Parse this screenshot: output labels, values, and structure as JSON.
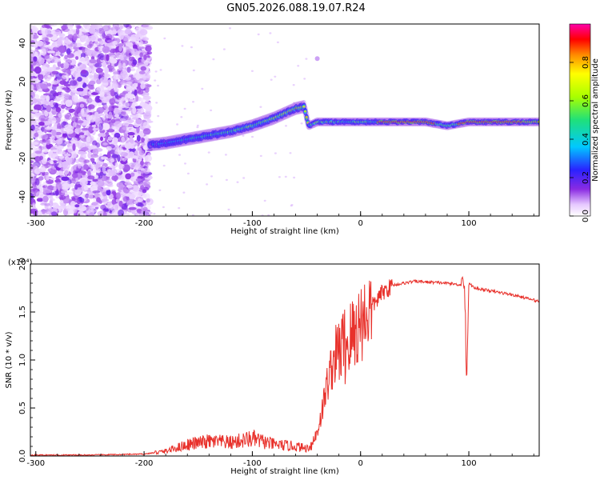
{
  "title": "GN05.2026.088.19.07.R24",
  "chart_data": [
    {
      "type": "heatmap",
      "panel": "top",
      "xlabel": "Height of straight line (km)",
      "ylabel": "Frequency (Hz)",
      "xlim": [
        -305,
        165
      ],
      "ylim": [
        -50,
        50
      ],
      "xticks": [
        -300,
        -200,
        -100,
        0,
        100
      ],
      "yticks": [
        -40,
        -20,
        0,
        20,
        40
      ],
      "colorbar": {
        "label": "Normalized spectral amplitude",
        "range": [
          0,
          1
        ],
        "ticks": [
          0.0,
          0.2,
          0.4,
          0.6,
          0.8
        ],
        "colormap": "rainbow (white → violet → blue → cyan → green → yellow → red → magenta)"
      },
      "noise_region_x": [
        -305,
        -195
      ],
      "ridge": {
        "x": [
          -195,
          -180,
          -150,
          -120,
          -100,
          -80,
          -60,
          -52,
          -48,
          -40,
          -20,
          0,
          20,
          60,
          80,
          100,
          120,
          165
        ],
        "y": [
          -13,
          -12,
          -9,
          -6,
          -3,
          1,
          6,
          7,
          -3,
          -1,
          -1,
          -1,
          -1,
          -1,
          -3,
          -1,
          -1,
          -1
        ],
        "peak_amplitude_x_range": [
          15,
          165
        ]
      }
    },
    {
      "type": "line",
      "panel": "bottom",
      "xlabel": "Height of straight line (km)",
      "ylabel": "SNR (10 * v/v)",
      "y_multiplier": "(x10⁴)",
      "xlim": [
        -305,
        165
      ],
      "ylim": [
        0,
        2.0
      ],
      "xticks": [
        -300,
        -200,
        -100,
        0,
        100
      ],
      "yticks": [
        0.0,
        0.5,
        1.0,
        1.5,
        2.0
      ],
      "color": "#e8312b",
      "series": [
        {
          "x": [
            -305,
            -250,
            -200,
            -180,
            -160,
            -140,
            -120,
            -100,
            -80,
            -60,
            -50,
            -45,
            -40,
            -35,
            -30,
            -25,
            -20,
            -15,
            -10,
            -5,
            0,
            10,
            20,
            30,
            50,
            80,
            95,
            98,
            100,
            105,
            120,
            140,
            165
          ],
          "y": [
            0.01,
            0.01,
            0.02,
            0.05,
            0.12,
            0.15,
            0.14,
            0.18,
            0.12,
            0.1,
            0.08,
            0.12,
            0.25,
            0.5,
            0.8,
            1.0,
            1.1,
            1.15,
            1.2,
            1.3,
            1.4,
            1.55,
            1.7,
            1.78,
            1.82,
            1.8,
            1.78,
            1.22,
            1.8,
            1.75,
            1.72,
            1.68,
            1.61
          ]
        }
      ]
    }
  ]
}
